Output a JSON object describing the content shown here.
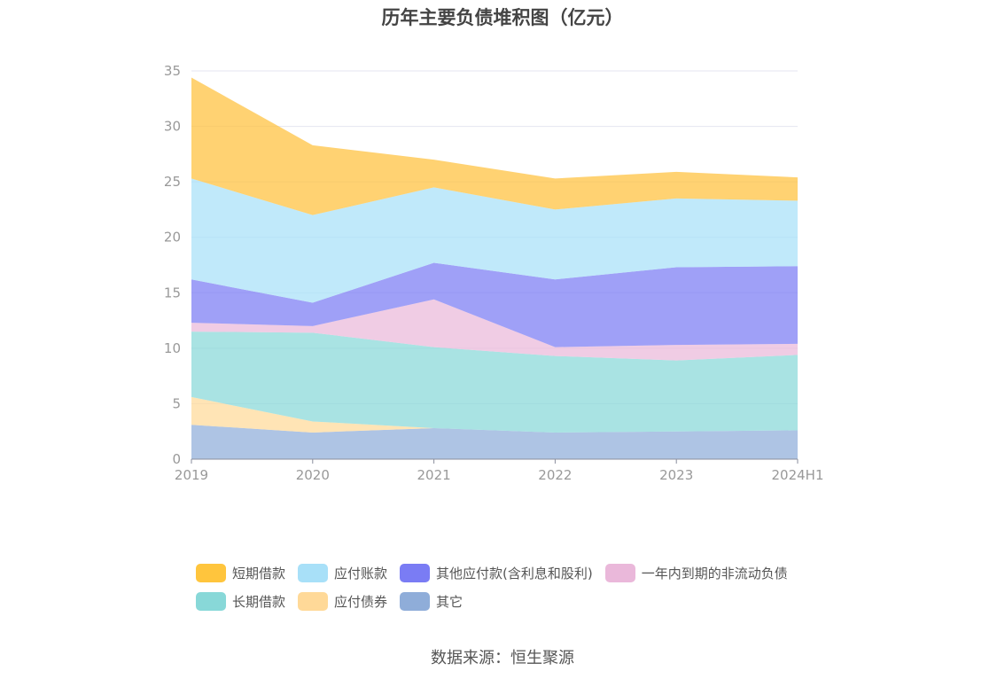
{
  "title": "历年主要负债堆积图（亿元）",
  "source": "数据来源：恒生聚源",
  "chart_data": {
    "type": "area",
    "stacked": true,
    "categories": [
      "2019",
      "2020",
      "2021",
      "2022",
      "2023",
      "2024H1"
    ],
    "ylim": [
      0,
      35
    ],
    "yticks": [
      0,
      5,
      10,
      15,
      20,
      25,
      30,
      35
    ],
    "grid": true,
    "legend_position": "bottom",
    "series": [
      {
        "name": "其它",
        "color": "#8fadd9",
        "values": [
          3.1,
          2.4,
          2.8,
          2.4,
          2.5,
          2.6
        ]
      },
      {
        "name": "应付债券",
        "color": "#ffd998",
        "values": [
          2.5,
          1.0,
          0.0,
          0.0,
          0.0,
          0.0
        ]
      },
      {
        "name": "长期借款",
        "color": "#88d8d8",
        "values": [
          5.9,
          8.0,
          7.3,
          6.9,
          6.4,
          6.8
        ]
      },
      {
        "name": "一年内到期的非流动负债",
        "color": "#eab8da",
        "values": [
          0.8,
          0.6,
          4.3,
          0.8,
          1.4,
          1.0
        ]
      },
      {
        "name": "其他应付款(含利息和股利)",
        "color": "#7a7cf4",
        "values": [
          3.9,
          2.1,
          3.3,
          6.1,
          7.0,
          7.0
        ]
      },
      {
        "name": "应付账款",
        "color": "#a8e0f8",
        "values": [
          9.1,
          7.9,
          6.8,
          6.3,
          6.2,
          5.9
        ]
      },
      {
        "name": "短期借款",
        "color": "#ffc13b",
        "values": [
          9.1,
          6.3,
          2.5,
          2.8,
          2.4,
          2.1
        ]
      }
    ]
  },
  "legend": [
    [
      {
        "label": "短期借款",
        "color": "#ffc53d"
      },
      {
        "label": "应付账款",
        "color": "#a8e0f8"
      },
      {
        "label": "其他应付款(含利息和股利)",
        "color": "#7a7cf4"
      },
      {
        "label": "一年内到期的非流动负债",
        "color": "#eab8da"
      }
    ],
    [
      {
        "label": "长期借款",
        "color": "#88d8d8"
      },
      {
        "label": "应付债券",
        "color": "#ffd998"
      },
      {
        "label": "其它",
        "color": "#8fadd9"
      }
    ]
  ]
}
